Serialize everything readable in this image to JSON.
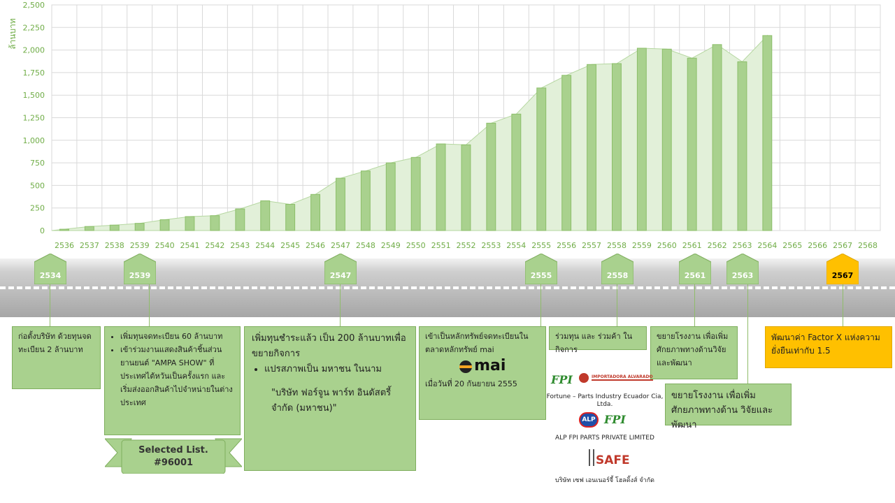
{
  "chart_data": {
    "type": "bar",
    "ylabel": "ล้านบาท",
    "ylim": [
      0,
      2500
    ],
    "yticks": [
      "0",
      "250",
      "500",
      "750",
      "1,000",
      "1,250",
      "1,500",
      "1,750",
      "2,000",
      "2,250",
      "2,500"
    ],
    "grid": true,
    "categories": [
      "2536",
      "2537",
      "2538",
      "2539",
      "2540",
      "2541",
      "2542",
      "2543",
      "2544",
      "2545",
      "2546",
      "2547",
      "2548",
      "2549",
      "2550",
      "2551",
      "2552",
      "2553",
      "2554",
      "2555",
      "2556",
      "2557",
      "2558",
      "2559",
      "2560",
      "2561",
      "2562",
      "2563",
      "2564",
      "2565",
      "2566",
      "2567",
      "2568"
    ],
    "values": [
      15,
      45,
      60,
      80,
      120,
      155,
      165,
      240,
      330,
      290,
      400,
      580,
      660,
      750,
      810,
      960,
      950,
      1190,
      1290,
      1580,
      1720,
      1840,
      1850,
      2020,
      2010,
      1910,
      2060,
      1870,
      2160,
      null,
      null,
      null,
      null
    ],
    "colors": {
      "bar": "#a9d18e",
      "bar_edge": "#8cbf6a",
      "area": "#e2f0d9",
      "area_edge": "#b5d7a0",
      "axis_text": "#70ad47"
    }
  },
  "timeline": {
    "markers": [
      {
        "year": "2534",
        "color": "#a9d18e"
      },
      {
        "year": "2539",
        "color": "#a9d18e"
      },
      {
        "year": "2547",
        "color": "#a9d18e"
      },
      {
        "year": "2555",
        "color": "#a9d18e"
      },
      {
        "year": "2558",
        "color": "#a9d18e"
      },
      {
        "year": "2561",
        "color": "#a9d18e"
      },
      {
        "year": "2563",
        "color": "#a9d18e"
      },
      {
        "year": "2567",
        "color": "#ffc000"
      }
    ],
    "events": {
      "e2534": "ก่อตั้งบริษัท ด้วยทุนจดทะเบียน 2 ล้านบาท",
      "e2539_1": "เพิ่มทุนจดทะเบียน 60 ล้านบาท",
      "e2539_2": "เข้าร่วมงานแสดงสินค้าชิ้นส่วนยานยนต์ \"AMPA SHOW\" ที่ประเทศไต้หวันเป็นครั้งแรก และเริ่มส่งออกสินค้าไปจำหน่ายในต่างประเทศ",
      "selected_list_1": "Selected List.",
      "selected_list_2": "#96001",
      "e2547_1": "เพิ่มทุนชำระแล้ว เป็น 200 ล้านบาทเพื่อขยายกิจการ",
      "e2547_2": "แปรสภาพเป็น มหาชน ในนาม",
      "e2547_3": "\"บริษัท ฟอร์จูน พาร์ท อินดัสตรี้ จำกัด (มหาชน)\"",
      "e2555_1": "เข้าเป็นหลักทรัพย์จดทะเบียนในตลาดหลักทรัพย์ mai",
      "e2555_logo": "mai",
      "e2555_2": "เมื่อวันที่ 20 กันยายน 2555",
      "e2558": "ร่วมทุน และ ร่วมค้า ในกิจการ",
      "logo_fpi": "FPI",
      "logo_importadora": "IMPORTADORA ALVARADO",
      "logo_alp": "ALP",
      "logo_safe": "SAFE",
      "jv1": "Fortune – Parts Industry Ecuador Cia, Ltda.",
      "jv2": "ALP FPI PARTS PRIVATE LIMITED",
      "jv3": "บริษัท เซฟ เอนเนอร์จี้ โฮลดิ้งส์ จำกัด",
      "e2561": "ขยายโรงงาน เพื่อเพิ่มศักยภาพทางด้านวิจัยและพัฒนา",
      "e2563": "ขยายโรงงาน เพื่อเพิ่มศักยภาพทางด้าน วิจัยและพัฒนา",
      "e2567": "พัฒนาค่า Factor X แห่งความยั่งยืนเท่ากับ 1.5"
    }
  }
}
